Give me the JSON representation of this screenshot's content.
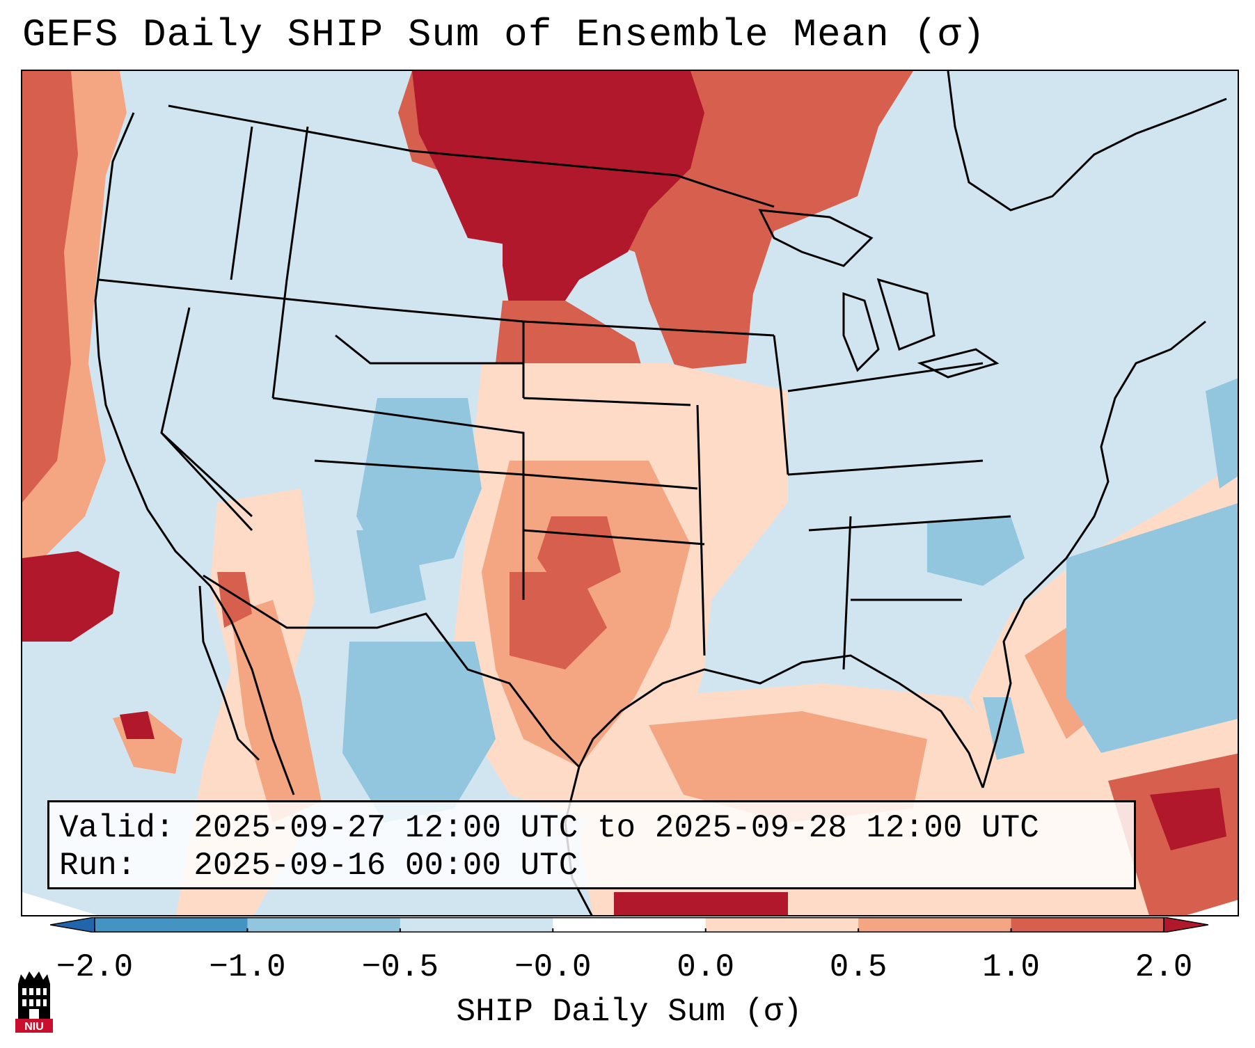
{
  "title": "GEFS Daily SHIP Sum of Ensemble Mean (σ)",
  "info": {
    "valid_label": "Valid:",
    "valid_value": "2025-09-27 12:00 UTC to 2025-09-28 12:00 UTC",
    "run_label": "Run:",
    "run_value": "2025-09-16 00:00 UTC"
  },
  "colorbar": {
    "label": "SHIP Daily Sum (σ)",
    "ticks": [
      "−2.0",
      "−1.0",
      "−0.5",
      "−0.0",
      "0.0",
      "0.5",
      "1.0",
      "2.0"
    ],
    "bins": [
      {
        "range": "<-2.0",
        "color": "#2166ac"
      },
      {
        "range": "-2.0 to -1.0",
        "color": "#4393c3"
      },
      {
        "range": "-1.0 to -0.5",
        "color": "#92c5de"
      },
      {
        "range": "-0.5 to -0.0",
        "color": "#d1e5f0"
      },
      {
        "range": "-0.0 to 0.0",
        "color": "#ffffff"
      },
      {
        "range": "0.0 to 0.5",
        "color": "#fddbc7"
      },
      {
        "range": "0.5 to 1.0",
        "color": "#f4a582"
      },
      {
        "range": "1.0 to 2.0",
        "color": "#d6604d"
      },
      {
        "range": ">2.0",
        "color": "#b2182b"
      }
    ]
  },
  "logo": {
    "text": "NIU",
    "color": "#c8102e"
  }
}
